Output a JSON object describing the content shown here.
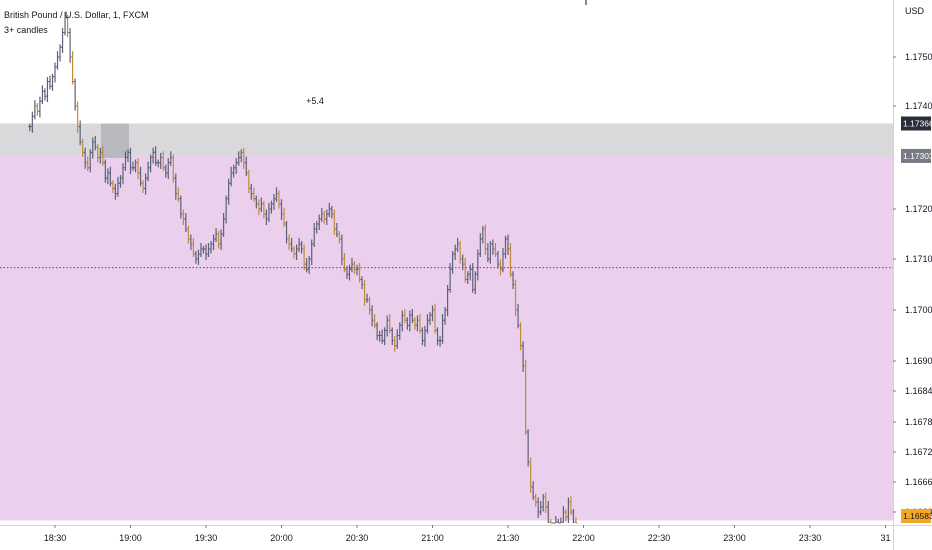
{
  "legend": {
    "symbol": "British Pound / U.S. Dollar, 1, FXCM",
    "indicator": "3+ candles"
  },
  "annotation": "+5.4",
  "chart_data": {
    "type": "ohlc",
    "currency_label": "USD",
    "y_ticks": [
      "1.17500",
      "1.17400",
      "1.17200",
      "1.17100",
      "1.17000",
      "1.16900",
      "1.16840",
      "1.16780",
      "1.16720",
      "1.16660",
      "1.16600"
    ],
    "x_ticks": [
      "18:30",
      "19:00",
      "19:30",
      "20:00",
      "20:30",
      "21:00",
      "21:30",
      "22:00",
      "22:30",
      "23:00",
      "23:30",
      "31"
    ],
    "price_tags": [
      {
        "label": "1.17366",
        "color": "#2a2e39"
      },
      {
        "label": "1.17303",
        "color": "#787b86"
      },
      {
        "label": "1.16583",
        "color": "#f5a623"
      }
    ],
    "zones": [
      {
        "name": "gray-zone",
        "from": 1.17303,
        "to": 1.17366,
        "color": "#d9d9db"
      },
      {
        "name": "purple-zone",
        "from": 1.16583,
        "to": 1.17303,
        "color": "#ead0ec"
      }
    ],
    "midline": {
      "value": 1.17083,
      "color": "#9c27b0"
    },
    "bar_color": "#5d6079",
    "accent_color": "#c08a3e",
    "series": [
      {
        "start": "18:20",
        "step_minutes": 1,
        "values": [
          1.1736,
          1.1738,
          1.174,
          1.1739,
          1.1741,
          1.1743,
          1.1742,
          1.1745,
          1.1744,
          1.1746,
          1.1748,
          1.175,
          1.1752,
          1.1755,
          1.1758,
          1.1755,
          1.175,
          1.1745,
          1.174,
          1.1736,
          1.1733,
          1.1731,
          1.1729,
          1.1728,
          1.1731,
          1.1733,
          1.1732,
          1.173,
          1.1731,
          1.1729,
          1.1726,
          1.1727,
          1.1725,
          1.1724,
          1.1723,
          1.1725,
          1.1726,
          1.1728,
          1.173,
          1.1731,
          1.1728,
          1.1728,
          1.1729,
          1.1727,
          1.1725,
          1.1724,
          1.1726,
          1.1728,
          1.173,
          1.1731,
          1.1729,
          1.1729,
          1.173,
          1.1728,
          1.1727,
          1.1729,
          1.173,
          1.1726,
          1.1723,
          1.1722,
          1.1719,
          1.1718,
          1.1716,
          1.1714,
          1.1713,
          1.1711,
          1.171,
          1.1711,
          1.1712,
          1.1712,
          1.1711,
          1.1712,
          1.1713,
          1.1714,
          1.1715,
          1.1713,
          1.1715,
          1.1718,
          1.1722,
          1.1725,
          1.1727,
          1.1728,
          1.1729,
          1.173,
          1.1731,
          1.1729,
          1.1727,
          1.1724,
          1.1723,
          1.1722,
          1.1721,
          1.172,
          1.1721,
          1.1719,
          1.1718,
          1.172,
          1.1721,
          1.1722,
          1.1723,
          1.1721,
          1.1719,
          1.1717,
          1.1714,
          1.1713,
          1.1712,
          1.1711,
          1.1712,
          1.1713,
          1.1712,
          1.1709,
          1.1708,
          1.171,
          1.1713,
          1.1716,
          1.1717,
          1.1718,
          1.1719,
          1.1718,
          1.1719,
          1.172,
          1.1719,
          1.1716,
          1.1715,
          1.1714,
          1.171,
          1.1708,
          1.1707,
          1.1708,
          1.1709,
          1.1708,
          1.1708,
          1.1706,
          1.1705,
          1.1702,
          1.1702,
          1.17,
          1.1698,
          1.1697,
          1.1695,
          1.1695,
          1.1694,
          1.1696,
          1.1698,
          1.1696,
          1.1694,
          1.1693,
          1.1695,
          1.1697,
          1.1699,
          1.1698,
          1.1697,
          1.1699,
          1.1698,
          1.1697,
          1.1698,
          1.1696,
          1.1694,
          1.1696,
          1.1698,
          1.1699,
          1.17,
          1.1696,
          1.1694,
          1.1694,
          1.1698,
          1.17,
          1.1704,
          1.1708,
          1.1711,
          1.1712,
          1.1713,
          1.171,
          1.1709,
          1.1706,
          1.1707,
          1.1708,
          1.1704,
          1.1707,
          1.1711,
          1.1714,
          1.1716,
          1.1712,
          1.171,
          1.1713,
          1.1712,
          1.1711,
          1.1709,
          1.1708,
          1.1711,
          1.1714,
          1.1712,
          1.1707,
          1.1705,
          1.17,
          1.1697,
          1.1693,
          1.1689,
          1.1676,
          1.167,
          1.1665,
          1.1663,
          1.1662,
          1.166,
          1.1661,
          1.1663,
          1.1661,
          1.1658,
          1.1657,
          1.1657,
          1.1658,
          1.1657,
          1.1658,
          1.166,
          1.1659,
          1.1662,
          1.166,
          1.1658,
          1.1657
        ]
      }
    ]
  }
}
